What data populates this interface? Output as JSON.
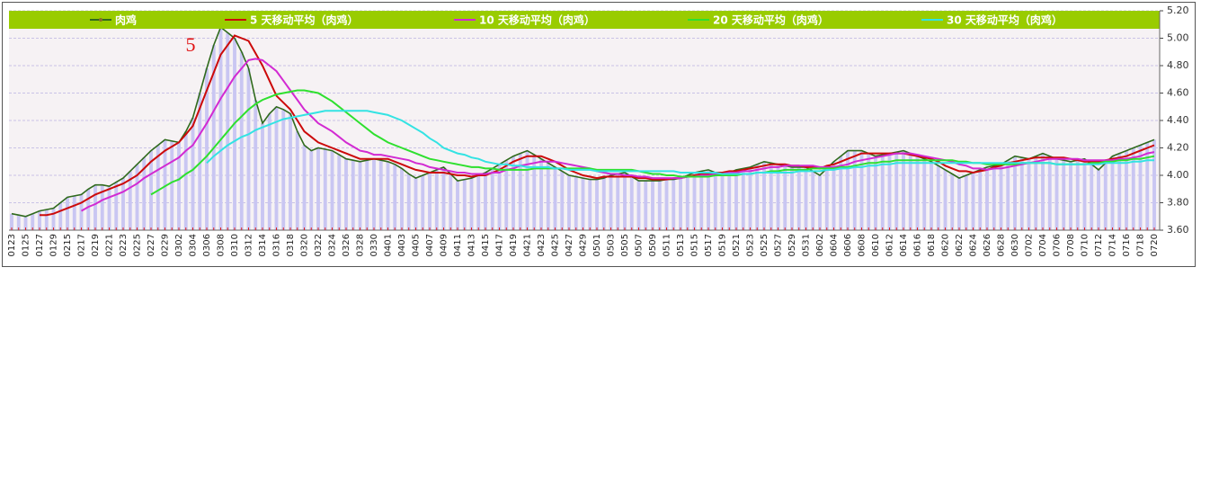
{
  "chart_data": {
    "type": "line",
    "annotation": "5",
    "categories": [
      "0123",
      null,
      "0125",
      null,
      "0127",
      null,
      "0129",
      null,
      "0215",
      null,
      "0217",
      null,
      "0219",
      null,
      "0221",
      null,
      "0223",
      null,
      "0225",
      null,
      "0227",
      null,
      "0229",
      null,
      "0302",
      null,
      "0304",
      null,
      "0306",
      null,
      "0308",
      null,
      "0310",
      null,
      "0312",
      null,
      "0314",
      null,
      "0316",
      null,
      "0318",
      null,
      "0320",
      null,
      "0322",
      null,
      "0324",
      null,
      "0326",
      null,
      "0328",
      null,
      "0330",
      null,
      "0401",
      null,
      "0403",
      null,
      "0405",
      null,
      "0407",
      null,
      "0409",
      null,
      "0411",
      null,
      "0413",
      null,
      "0415",
      null,
      "0417",
      null,
      "0419",
      null,
      "0421",
      null,
      "0423",
      null,
      "0425",
      null,
      "0427",
      null,
      "0429",
      null,
      "0501",
      null,
      "0503",
      null,
      "0505",
      null,
      "0507",
      null,
      "0509",
      null,
      "0511",
      null,
      "0513",
      null,
      "0515",
      null,
      "0517",
      null,
      "0519",
      null,
      "0521",
      null,
      "0523",
      null,
      "0525",
      null,
      "0527",
      null,
      "0529",
      null,
      "0531",
      null,
      "0602",
      null,
      "0604",
      null,
      "0606",
      null,
      "0608",
      null,
      "0610",
      null,
      "0612",
      null,
      "0614",
      null,
      "0616",
      null,
      "0618",
      null,
      "0620",
      null,
      "0622",
      null,
      "0624",
      null,
      "0626",
      null,
      "0628",
      null,
      "0630",
      null,
      "0702",
      null,
      "0704",
      null,
      "0706",
      null,
      "0708",
      null,
      "0710",
      null,
      "0712",
      null,
      "0714",
      null,
      "0716",
      null,
      "0718",
      null,
      "0720"
    ],
    "series": [
      {
        "name": "肉鸡",
        "color": "#2f6a1c",
        "bar_color": "#c9c6f2",
        "values": [
          3.72,
          3.71,
          3.7,
          3.72,
          3.74,
          3.75,
          3.76,
          3.8,
          3.84,
          3.85,
          3.86,
          3.9,
          3.93,
          3.93,
          3.92,
          3.95,
          3.98,
          4.03,
          4.08,
          4.13,
          4.18,
          4.22,
          4.26,
          4.25,
          4.24,
          4.32,
          4.42,
          4.6,
          4.78,
          4.95,
          5.08,
          5.04,
          5.0,
          4.9,
          4.78,
          4.55,
          4.38,
          4.45,
          4.5,
          4.48,
          4.45,
          4.32,
          4.22,
          4.18,
          4.2,
          4.19,
          4.18,
          4.15,
          4.12,
          4.11,
          4.1,
          4.11,
          4.12,
          4.11,
          4.1,
          4.08,
          4.05,
          4.01,
          3.98,
          4.0,
          4.02,
          4.04,
          4.06,
          4.01,
          3.96,
          3.97,
          3.98,
          4.0,
          4.02,
          4.05,
          4.08,
          4.11,
          4.14,
          4.16,
          4.18,
          4.15,
          4.12,
          4.09,
          4.06,
          4.03,
          4.0,
          3.99,
          3.98,
          3.97,
          3.97,
          3.98,
          4.0,
          4.01,
          4.02,
          3.99,
          3.96,
          3.96,
          3.96,
          3.96,
          3.97,
          3.97,
          3.98,
          4.0,
          4.02,
          4.03,
          4.04,
          4.02,
          4.0,
          4.02,
          4.04,
          4.05,
          4.06,
          4.08,
          4.1,
          4.09,
          4.08,
          4.07,
          4.06,
          4.06,
          4.06,
          4.03,
          4.0,
          4.05,
          4.1,
          4.14,
          4.18,
          4.18,
          4.18,
          4.16,
          4.14,
          4.15,
          4.16,
          4.17,
          4.18,
          4.16,
          4.14,
          4.12,
          4.1,
          4.07,
          4.04,
          4.01,
          3.98,
          4.0,
          4.02,
          4.04,
          4.06,
          4.07,
          4.08,
          4.11,
          4.14,
          4.13,
          4.12,
          4.14,
          4.16,
          4.14,
          4.12,
          4.11,
          4.1,
          4.11,
          4.12,
          4.08,
          4.04,
          4.09,
          4.14,
          4.16,
          4.18,
          4.2,
          4.22,
          4.24,
          4.26
        ]
      },
      {
        "name": "5 天移动平均（肉鸡）",
        "color": "#cc0a0a",
        "values": [
          null,
          null,
          null,
          null,
          3.71,
          3.71,
          3.72,
          3.74,
          3.76,
          3.78,
          3.8,
          3.83,
          3.86,
          3.88,
          3.9,
          3.92,
          3.94,
          3.97,
          4.0,
          4.05,
          4.1,
          4.14,
          4.18,
          4.21,
          4.24,
          4.3,
          4.36,
          4.49,
          4.62,
          4.75,
          4.88,
          4.95,
          5.02,
          5.0,
          4.98,
          4.89,
          4.8,
          4.69,
          4.58,
          4.53,
          4.48,
          4.4,
          4.32,
          4.28,
          4.24,
          4.22,
          4.2,
          4.18,
          4.16,
          4.14,
          4.12,
          4.12,
          4.12,
          4.12,
          4.12,
          4.1,
          4.08,
          4.06,
          4.04,
          4.03,
          4.02,
          4.02,
          4.02,
          4.01,
          4.0,
          4.0,
          3.99,
          4.0,
          4.0,
          4.02,
          4.04,
          4.07,
          4.1,
          4.12,
          4.14,
          4.14,
          4.14,
          4.12,
          4.1,
          4.07,
          4.04,
          4.02,
          4.0,
          3.99,
          3.98,
          3.99,
          3.99,
          3.99,
          3.99,
          3.99,
          3.98,
          3.98,
          3.97,
          3.97,
          3.97,
          3.98,
          3.98,
          3.99,
          4.0,
          4.01,
          4.01,
          4.02,
          4.02,
          4.03,
          4.03,
          4.04,
          4.05,
          4.06,
          4.07,
          4.08,
          4.08,
          4.08,
          4.07,
          4.07,
          4.06,
          4.06,
          4.05,
          4.07,
          4.08,
          4.1,
          4.12,
          4.14,
          4.16,
          4.16,
          4.16,
          4.16,
          4.16,
          4.16,
          4.16,
          4.15,
          4.14,
          4.13,
          4.12,
          4.1,
          4.07,
          4.05,
          4.03,
          4.03,
          4.02,
          4.03,
          4.04,
          4.06,
          4.07,
          4.09,
          4.1,
          4.11,
          4.12,
          4.13,
          4.13,
          4.13,
          4.13,
          4.13,
          4.12,
          4.11,
          4.1,
          4.1,
          4.1,
          4.11,
          4.12,
          4.13,
          4.14,
          4.16,
          4.18,
          4.2,
          4.22
        ]
      },
      {
        "name": "10 天移动平均（肉鸡）",
        "color": "#d22ad2",
        "values": [
          null,
          null,
          null,
          null,
          null,
          null,
          null,
          null,
          null,
          null,
          3.74,
          3.77,
          3.79,
          3.82,
          3.84,
          3.86,
          3.88,
          3.91,
          3.94,
          3.98,
          4.01,
          4.04,
          4.07,
          4.1,
          4.13,
          4.18,
          4.22,
          4.3,
          4.38,
          4.47,
          4.56,
          4.64,
          4.72,
          4.78,
          4.84,
          4.85,
          4.84,
          4.8,
          4.76,
          4.69,
          4.62,
          4.55,
          4.48,
          4.43,
          4.38,
          4.35,
          4.32,
          4.28,
          4.24,
          4.21,
          4.18,
          4.17,
          4.15,
          4.15,
          4.14,
          4.13,
          4.12,
          4.11,
          4.09,
          4.08,
          4.06,
          4.05,
          4.04,
          4.03,
          4.02,
          4.02,
          4.01,
          4.01,
          4.01,
          4.02,
          4.02,
          4.04,
          4.05,
          4.07,
          4.08,
          4.09,
          4.1,
          4.1,
          4.1,
          4.09,
          4.08,
          4.07,
          4.06,
          4.05,
          4.03,
          4.02,
          4.01,
          4.01,
          4.0,
          4.0,
          3.99,
          3.99,
          3.98,
          3.98,
          3.98,
          3.98,
          3.98,
          3.99,
          3.99,
          4.0,
          4.0,
          4.01,
          4.01,
          4.02,
          4.02,
          4.03,
          4.03,
          4.04,
          4.05,
          4.06,
          4.06,
          4.07,
          4.07,
          4.07,
          4.07,
          4.07,
          4.06,
          4.06,
          4.06,
          4.07,
          4.08,
          4.1,
          4.11,
          4.12,
          4.13,
          4.14,
          4.15,
          4.16,
          4.16,
          4.16,
          4.15,
          4.14,
          4.13,
          4.12,
          4.11,
          4.1,
          4.08,
          4.07,
          4.05,
          4.05,
          4.04,
          4.05,
          4.05,
          4.06,
          4.07,
          4.08,
          4.09,
          4.1,
          4.11,
          4.12,
          4.12,
          4.12,
          4.12,
          4.12,
          4.11,
          4.11,
          4.11,
          4.11,
          4.11,
          4.12,
          4.12,
          4.13,
          4.14,
          4.16,
          4.17
        ]
      },
      {
        "name": "20 天移动平均（肉鸡）",
        "color": "#2ee02e",
        "values": [
          null,
          null,
          null,
          null,
          null,
          null,
          null,
          null,
          null,
          null,
          null,
          null,
          null,
          null,
          null,
          null,
          null,
          null,
          null,
          null,
          3.86,
          3.89,
          3.92,
          3.95,
          3.97,
          4.01,
          4.04,
          4.09,
          4.14,
          4.2,
          4.26,
          4.32,
          4.38,
          4.43,
          4.48,
          4.52,
          4.55,
          4.57,
          4.59,
          4.6,
          4.61,
          4.62,
          4.62,
          4.61,
          4.6,
          4.57,
          4.54,
          4.5,
          4.46,
          4.42,
          4.38,
          4.34,
          4.3,
          4.27,
          4.24,
          4.22,
          4.2,
          4.18,
          4.16,
          4.14,
          4.12,
          4.11,
          4.1,
          4.09,
          4.08,
          4.07,
          4.06,
          4.06,
          4.05,
          4.05,
          4.04,
          4.04,
          4.04,
          4.04,
          4.04,
          4.05,
          4.05,
          4.05,
          4.05,
          4.05,
          4.05,
          4.05,
          4.05,
          4.05,
          4.04,
          4.04,
          4.04,
          4.04,
          4.04,
          4.04,
          4.03,
          4.02,
          4.01,
          4.01,
          4.0,
          4.0,
          3.99,
          3.99,
          3.99,
          3.99,
          3.99,
          4.0,
          4.0,
          4.0,
          4.0,
          4.01,
          4.01,
          4.02,
          4.02,
          4.03,
          4.03,
          4.04,
          4.04,
          4.04,
          4.04,
          4.05,
          4.05,
          4.05,
          4.05,
          4.06,
          4.06,
          4.07,
          4.08,
          4.09,
          4.09,
          4.1,
          4.1,
          4.11,
          4.11,
          4.11,
          4.11,
          4.11,
          4.11,
          4.11,
          4.11,
          4.11,
          4.1,
          4.1,
          4.09,
          4.09,
          4.08,
          4.08,
          4.08,
          4.08,
          4.08,
          4.09,
          4.09,
          4.09,
          4.09,
          4.09,
          4.08,
          4.08,
          4.08,
          4.08,
          4.08,
          4.09,
          4.09,
          4.1,
          4.1,
          4.11,
          4.11,
          4.12,
          4.12,
          4.13,
          4.14
        ]
      },
      {
        "name": "30 天移动平均（肉鸡）",
        "color": "#33e3e3",
        "values": [
          null,
          null,
          null,
          null,
          null,
          null,
          null,
          null,
          null,
          null,
          null,
          null,
          null,
          null,
          null,
          null,
          null,
          null,
          null,
          null,
          null,
          null,
          null,
          null,
          null,
          null,
          null,
          null,
          4.09,
          4.14,
          4.18,
          4.22,
          4.25,
          4.28,
          4.3,
          4.33,
          4.35,
          4.37,
          4.39,
          4.41,
          4.42,
          4.43,
          4.44,
          4.45,
          4.46,
          4.47,
          4.47,
          4.47,
          4.47,
          4.47,
          4.47,
          4.47,
          4.46,
          4.45,
          4.44,
          4.42,
          4.4,
          4.37,
          4.34,
          4.31,
          4.27,
          4.24,
          4.2,
          4.18,
          4.16,
          4.15,
          4.13,
          4.12,
          4.1,
          4.09,
          4.08,
          4.08,
          4.07,
          4.07,
          4.06,
          4.06,
          4.06,
          4.06,
          4.05,
          4.05,
          4.04,
          4.04,
          4.04,
          4.04,
          4.03,
          4.03,
          4.03,
          4.03,
          4.03,
          4.03,
          4.03,
          4.03,
          4.03,
          4.03,
          4.03,
          4.03,
          4.02,
          4.02,
          4.02,
          4.02,
          4.02,
          4.02,
          4.01,
          4.01,
          4.01,
          4.01,
          4.01,
          4.02,
          4.02,
          4.02,
          4.02,
          4.02,
          4.02,
          4.03,
          4.03,
          4.03,
          4.03,
          4.04,
          4.04,
          4.05,
          4.05,
          4.06,
          4.06,
          4.07,
          4.07,
          4.08,
          4.08,
          4.09,
          4.09,
          4.09,
          4.09,
          4.09,
          4.09,
          4.09,
          4.09,
          4.09,
          4.09,
          4.09,
          4.09,
          4.09,
          4.09,
          4.09,
          4.09,
          4.09,
          4.09,
          4.09,
          4.09,
          4.09,
          4.09,
          4.09,
          4.08,
          4.08,
          4.08,
          4.08,
          4.08,
          4.08,
          4.08,
          4.09,
          4.09,
          4.09,
          4.09,
          4.1,
          4.1,
          4.11,
          4.11
        ]
      }
    ],
    "ylim": [
      3.6,
      5.2
    ],
    "yticks": [
      {
        "value": 3.6,
        "label": "3.60"
      },
      {
        "value": 3.8,
        "label": "3.80"
      },
      {
        "value": 4.0,
        "label": "4.00"
      },
      {
        "value": 4.2,
        "label": "4.20"
      },
      {
        "value": 4.4,
        "label": "4.40"
      },
      {
        "value": 4.6,
        "label": "4.60"
      },
      {
        "value": 4.8,
        "label": "4.80"
      },
      {
        "value": 5.0,
        "label": "5.00"
      },
      {
        "value": 5.2,
        "label": "5.20"
      }
    ],
    "grid": true,
    "legend": "top"
  }
}
